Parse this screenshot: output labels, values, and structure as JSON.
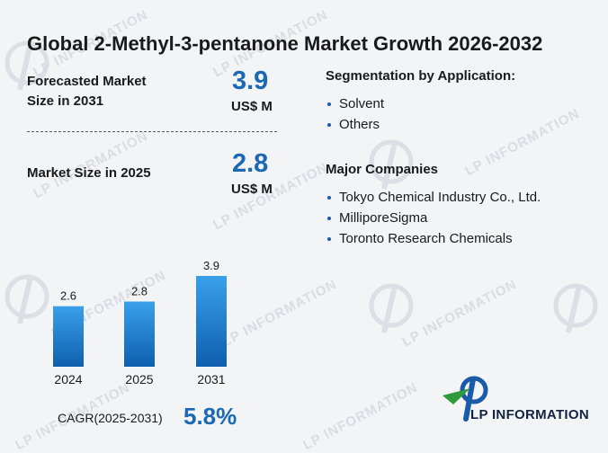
{
  "title": "Global 2-Methyl-3-pentanone Market Growth 2026-2032",
  "forecast": {
    "label_line1": "Forecasted Market",
    "label_line2": "Size in 2031",
    "value": "3.9",
    "unit": "US$ M"
  },
  "current": {
    "label": "Market Size in 2025",
    "value": "2.8",
    "unit": "US$ M"
  },
  "segmentation": {
    "heading": "Segmentation by Application:",
    "items": [
      "Solvent",
      "Others"
    ]
  },
  "companies": {
    "heading": "Major Companies",
    "items": [
      "Tokyo Chemical Industry Co., Ltd.",
      "MilliporeSigma",
      "Toronto Research Chemicals"
    ]
  },
  "cagr": {
    "label": "CAGR(2025-2031)",
    "value": "5.8%"
  },
  "brand": {
    "name": "LP INFORMATION",
    "watermark": "LP INFORMATION"
  },
  "colors": {
    "accent": "#1b69b3",
    "bar_top": "#3aa0ea",
    "bar_bottom": "#0f5fae",
    "logo_green": "#2e9a3b",
    "logo_blue": "#1b5aa8"
  },
  "chart_data": {
    "type": "bar",
    "categories": [
      "2024",
      "2025",
      "2031"
    ],
    "values": [
      2.6,
      2.8,
      3.9
    ],
    "data_labels": [
      "2.6",
      "2.8",
      "3.9"
    ],
    "ylim": [
      0,
      3.9
    ],
    "grid": false
  }
}
